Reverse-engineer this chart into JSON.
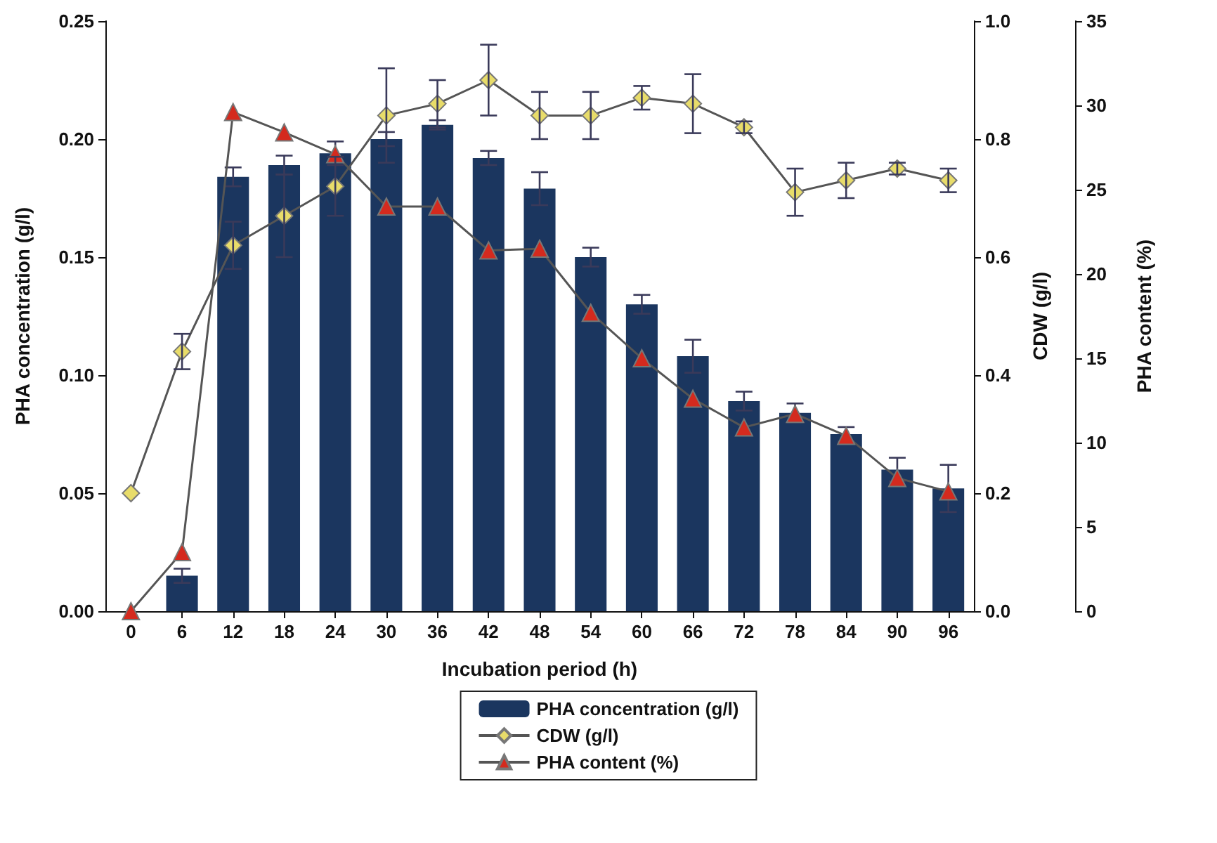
{
  "chart_data": {
    "type": "bar",
    "xlabel": "Incubation period (h)",
    "ylabel": "PHA concentration (g/l)",
    "y2label": "CDW (g/l)",
    "y3label": "PHA content (%)",
    "categories": [
      "0",
      "6",
      "12",
      "18",
      "24",
      "30",
      "36",
      "42",
      "48",
      "54",
      "60",
      "66",
      "72",
      "78",
      "84",
      "90",
      "96"
    ],
    "series": [
      {
        "name": "PHA concentration (g/l)",
        "color": "#1b365f",
        "values": [
          0,
          0.015,
          0.184,
          0.189,
          0.194,
          0.2,
          0.206,
          0.192,
          0.179,
          0.15,
          0.13,
          0.108,
          0.089,
          0.084,
          0.075,
          0.06,
          0.052
        ],
        "errors": [
          null,
          0.003,
          0.004,
          0.004,
          0.005,
          0.003,
          0.002,
          0.003,
          0.007,
          0.004,
          0.004,
          0.007,
          0.004,
          0.004,
          0.003,
          0.005,
          0.01
        ]
      },
      {
        "name": "CDW (g/l)",
        "type": "line",
        "axis": "y2",
        "color": "#e8dc6a",
        "marker": "diamond",
        "values": [
          0.2,
          0.44,
          0.62,
          0.67,
          0.72,
          0.84,
          0.86,
          0.9,
          0.84,
          0.84,
          0.87,
          0.86,
          0.82,
          0.71,
          0.73,
          0.75,
          0.73
        ],
        "errors": [
          null,
          0.03,
          0.04,
          0.07,
          0.05,
          0.08,
          0.04,
          0.06,
          0.04,
          0.04,
          0.02,
          0.05,
          0.01,
          0.04,
          0.03,
          0.01,
          0.02
        ]
      },
      {
        "name": "PHA content (%)",
        "type": "line",
        "axis": "y3",
        "color": "#d42a1e",
        "marker": "triangle",
        "values": [
          0,
          3.5,
          29.6,
          28.4,
          27.1,
          24,
          24,
          21.4,
          21.5,
          17.7,
          15,
          12.6,
          10.9,
          11.7,
          10.4,
          7.9,
          7.1
        ]
      }
    ],
    "ylim": [
      0,
      0.25
    ],
    "yticks": [
      {
        "value": 0,
        "label": "0.00"
      },
      {
        "value": 0.05,
        "label": "0.05"
      },
      {
        "value": 0.1,
        "label": "0.10"
      },
      {
        "value": 0.15,
        "label": "0.15"
      },
      {
        "value": 0.2,
        "label": "0.20"
      },
      {
        "value": 0.25,
        "label": "0.25"
      }
    ],
    "y2lim": [
      0,
      1
    ],
    "y2ticks": [
      {
        "value": 0,
        "label": "0.0"
      },
      {
        "value": 0.2,
        "label": "0.2"
      },
      {
        "value": 0.4,
        "label": "0.4"
      },
      {
        "value": 0.6,
        "label": "0.6"
      },
      {
        "value": 0.8,
        "label": "0.8"
      },
      {
        "value": 1,
        "label": "1.0"
      }
    ],
    "y3lim": [
      0,
      35
    ],
    "y3ticks": [
      0,
      5,
      10,
      15,
      20,
      25,
      30,
      35
    ],
    "legend": "bottom",
    "grid": false
  }
}
